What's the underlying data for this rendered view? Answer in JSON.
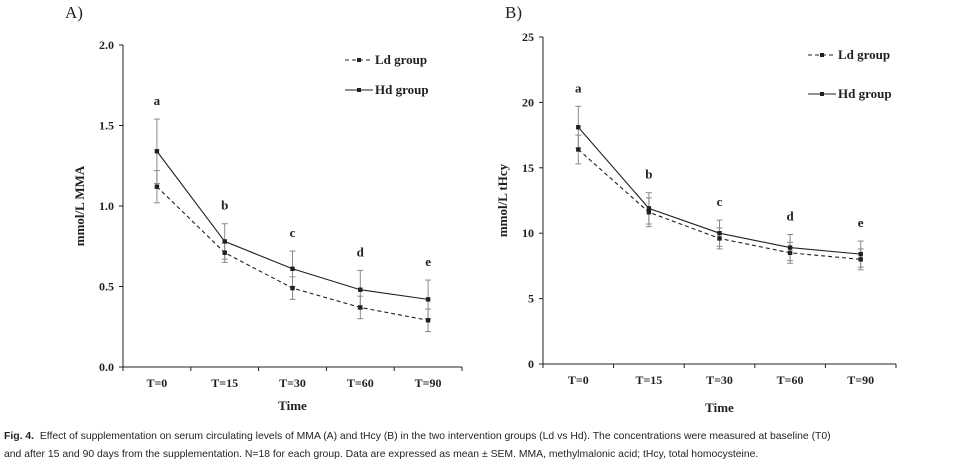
{
  "chart_data": [
    {
      "type": "line",
      "panel_label": "A)",
      "xlabel": "Time",
      "ylabel": "mmol/L MMA",
      "categories": [
        "T=0",
        "T=15",
        "T=30",
        "T=60",
        "T=90"
      ],
      "ylim": [
        0,
        2.0
      ],
      "yticks": [
        "0.0",
        "0.5",
        "1.0",
        "1.5",
        "2.0"
      ],
      "ytick_values": [
        0,
        0.5,
        1.0,
        1.5,
        2.0
      ],
      "grid": false,
      "legend_placement": "top-right",
      "annotations": [
        "a",
        "b",
        "c",
        "d",
        "e"
      ],
      "series": [
        {
          "name": "Ld group",
          "style": "dashed",
          "values": [
            1.12,
            0.71,
            0.49,
            0.37,
            0.29
          ],
          "sem": [
            0.1,
            0.06,
            0.07,
            0.07,
            0.07
          ]
        },
        {
          "name": "Hd group",
          "style": "solid",
          "values": [
            1.34,
            0.78,
            0.61,
            0.48,
            0.42
          ],
          "sem": [
            0.2,
            0.11,
            0.11,
            0.12,
            0.12
          ]
        }
      ]
    },
    {
      "type": "line",
      "panel_label": "B)",
      "xlabel": "Time",
      "ylabel": "mmol/L tHcy",
      "categories": [
        "T=0",
        "T=15",
        "T=30",
        "T=60",
        "T=90"
      ],
      "ylim": [
        0,
        25
      ],
      "yticks": [
        "0",
        "5",
        "10",
        "15",
        "20",
        "25"
      ],
      "ytick_values": [
        0,
        5,
        10,
        15,
        20,
        25
      ],
      "grid": false,
      "legend_placement": "top-right",
      "annotations": [
        "a",
        "b",
        "c",
        "d",
        "e"
      ],
      "series": [
        {
          "name": "Ld group",
          "style": "dashed",
          "values": [
            16.4,
            11.6,
            9.6,
            8.5,
            8.0
          ],
          "sem": [
            1.1,
            1.1,
            0.8,
            0.8,
            0.8
          ]
        },
        {
          "name": "Hd group",
          "style": "solid",
          "values": [
            18.1,
            11.9,
            10.0,
            8.9,
            8.4
          ],
          "sem": [
            1.6,
            1.2,
            1.0,
            1.0,
            1.0
          ]
        }
      ]
    }
  ],
  "caption": {
    "label": "Fig. 4.",
    "text_line1": "Effect of supplementation on serum circulating levels of MMA (A) and tHcy (B) in the two intervention groups (Ld vs Hd). The concentrations were measured at baseline (T0)",
    "text_line2": "and after 15 and 90 days from the supplementation. N=18 for each group. Data are expressed as mean ± SEM. MMA, methylmalonic acid; tHcy, total homocysteine."
  },
  "colors": {
    "ink": "#231f20",
    "error_bar": "#8a8a8a"
  }
}
